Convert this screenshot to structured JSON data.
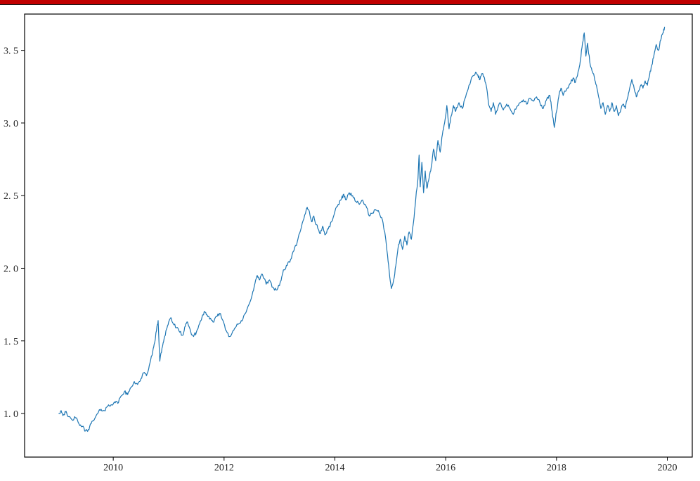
{
  "page": {
    "top_bar_color": "#c00000",
    "top_bar_border_color": "#1a1a1a",
    "background_color": "#ffffff"
  },
  "chart_data": {
    "type": "line",
    "title": "",
    "xlabel": "",
    "ylabel": "",
    "legend": null,
    "grid": false,
    "line_color": "#1f77b4",
    "axis_color": "#000000",
    "tick_label_color": "#222222",
    "xlim": [
      2008.4,
      2020.45
    ],
    "ylim": [
      0.7,
      3.75
    ],
    "x_ticks": [
      {
        "value": 2010,
        "label": "2010"
      },
      {
        "value": 2012,
        "label": "2012"
      },
      {
        "value": 2014,
        "label": "2014"
      },
      {
        "value": 2016,
        "label": "2016"
      },
      {
        "value": 2018,
        "label": "2018"
      },
      {
        "value": 2020,
        "label": "2020"
      }
    ],
    "y_ticks": [
      {
        "value": 1.0,
        "label": "1. 0"
      },
      {
        "value": 1.5,
        "label": "1. 5"
      },
      {
        "value": 2.0,
        "label": "2. 0"
      },
      {
        "value": 2.5,
        "label": "2. 5"
      },
      {
        "value": 3.0,
        "label": "3. 0"
      },
      {
        "value": 3.5,
        "label": "3. 5"
      }
    ],
    "noise_amplitude": 0.012,
    "points": [
      [
        2009.02,
        1.0
      ],
      [
        2009.06,
        1.02
      ],
      [
        2009.1,
        0.99
      ],
      [
        2009.14,
        1.01
      ],
      [
        2009.18,
        0.98
      ],
      [
        2009.25,
        0.96
      ],
      [
        2009.32,
        0.97
      ],
      [
        2009.38,
        0.93
      ],
      [
        2009.44,
        0.91
      ],
      [
        2009.5,
        0.88
      ],
      [
        2009.55,
        0.89
      ],
      [
        2009.6,
        0.93
      ],
      [
        2009.66,
        0.96
      ],
      [
        2009.72,
        1.0
      ],
      [
        2009.78,
        1.03
      ],
      [
        2009.84,
        1.02
      ],
      [
        2009.9,
        1.05
      ],
      [
        2009.96,
        1.06
      ],
      [
        2010.02,
        1.08
      ],
      [
        2010.08,
        1.07
      ],
      [
        2010.14,
        1.12
      ],
      [
        2010.2,
        1.15
      ],
      [
        2010.26,
        1.13
      ],
      [
        2010.32,
        1.18
      ],
      [
        2010.38,
        1.22
      ],
      [
        2010.44,
        1.2
      ],
      [
        2010.5,
        1.24
      ],
      [
        2010.55,
        1.28
      ],
      [
        2010.6,
        1.26
      ],
      [
        2010.65,
        1.33
      ],
      [
        2010.7,
        1.4
      ],
      [
        2010.74,
        1.48
      ],
      [
        2010.78,
        1.57
      ],
      [
        2010.81,
        1.64
      ],
      [
        2010.84,
        1.36
      ],
      [
        2010.88,
        1.45
      ],
      [
        2010.92,
        1.52
      ],
      [
        2010.96,
        1.58
      ],
      [
        2011.0,
        1.63
      ],
      [
        2011.04,
        1.66
      ],
      [
        2011.08,
        1.62
      ],
      [
        2011.14,
        1.59
      ],
      [
        2011.2,
        1.56
      ],
      [
        2011.26,
        1.54
      ],
      [
        2011.3,
        1.6
      ],
      [
        2011.34,
        1.63
      ],
      [
        2011.4,
        1.56
      ],
      [
        2011.45,
        1.53
      ],
      [
        2011.5,
        1.56
      ],
      [
        2011.56,
        1.62
      ],
      [
        2011.6,
        1.66
      ],
      [
        2011.64,
        1.7
      ],
      [
        2011.68,
        1.68
      ],
      [
        2011.74,
        1.65
      ],
      [
        2011.8,
        1.63
      ],
      [
        2011.86,
        1.67
      ],
      [
        2011.92,
        1.69
      ],
      [
        2011.98,
        1.64
      ],
      [
        2012.04,
        1.57
      ],
      [
        2012.1,
        1.53
      ],
      [
        2012.16,
        1.57
      ],
      [
        2012.22,
        1.6
      ],
      [
        2012.28,
        1.62
      ],
      [
        2012.34,
        1.65
      ],
      [
        2012.4,
        1.7
      ],
      [
        2012.46,
        1.76
      ],
      [
        2012.52,
        1.84
      ],
      [
        2012.56,
        1.9
      ],
      [
        2012.6,
        1.95
      ],
      [
        2012.64,
        1.92
      ],
      [
        2012.68,
        1.96
      ],
      [
        2012.72,
        1.93
      ],
      [
        2012.76,
        1.89
      ],
      [
        2012.82,
        1.92
      ],
      [
        2012.88,
        1.87
      ],
      [
        2012.94,
        1.85
      ],
      [
        2013.0,
        1.88
      ],
      [
        2013.04,
        1.94
      ],
      [
        2013.08,
        1.99
      ],
      [
        2013.14,
        2.02
      ],
      [
        2013.2,
        2.06
      ],
      [
        2013.26,
        2.12
      ],
      [
        2013.32,
        2.18
      ],
      [
        2013.38,
        2.26
      ],
      [
        2013.44,
        2.34
      ],
      [
        2013.5,
        2.42
      ],
      [
        2013.54,
        2.39
      ],
      [
        2013.58,
        2.32
      ],
      [
        2013.62,
        2.36
      ],
      [
        2013.66,
        2.3
      ],
      [
        2013.7,
        2.27
      ],
      [
        2013.74,
        2.24
      ],
      [
        2013.78,
        2.29
      ],
      [
        2013.82,
        2.23
      ],
      [
        2013.88,
        2.27
      ],
      [
        2013.94,
        2.32
      ],
      [
        2014.0,
        2.39
      ],
      [
        2014.06,
        2.44
      ],
      [
        2014.12,
        2.48
      ],
      [
        2014.16,
        2.51
      ],
      [
        2014.2,
        2.47
      ],
      [
        2014.26,
        2.52
      ],
      [
        2014.32,
        2.5
      ],
      [
        2014.38,
        2.46
      ],
      [
        2014.44,
        2.44
      ],
      [
        2014.5,
        2.47
      ],
      [
        2014.56,
        2.43
      ],
      [
        2014.62,
        2.36
      ],
      [
        2014.68,
        2.38
      ],
      [
        2014.74,
        2.4
      ],
      [
        2014.8,
        2.38
      ],
      [
        2014.86,
        2.33
      ],
      [
        2014.9,
        2.25
      ],
      [
        2014.94,
        2.12
      ],
      [
        2014.98,
        1.98
      ],
      [
        2015.02,
        1.86
      ],
      [
        2015.06,
        1.92
      ],
      [
        2015.1,
        2.02
      ],
      [
        2015.14,
        2.14
      ],
      [
        2015.18,
        2.2
      ],
      [
        2015.22,
        2.13
      ],
      [
        2015.26,
        2.22
      ],
      [
        2015.3,
        2.16
      ],
      [
        2015.34,
        2.25
      ],
      [
        2015.38,
        2.2
      ],
      [
        2015.42,
        2.32
      ],
      [
        2015.46,
        2.48
      ],
      [
        2015.5,
        2.62
      ],
      [
        2015.52,
        2.78
      ],
      [
        2015.54,
        2.56
      ],
      [
        2015.57,
        2.73
      ],
      [
        2015.6,
        2.52
      ],
      [
        2015.63,
        2.67
      ],
      [
        2015.66,
        2.55
      ],
      [
        2015.7,
        2.62
      ],
      [
        2015.74,
        2.7
      ],
      [
        2015.78,
        2.82
      ],
      [
        2015.82,
        2.74
      ],
      [
        2015.86,
        2.88
      ],
      [
        2015.9,
        2.8
      ],
      [
        2015.94,
        2.92
      ],
      [
        2015.98,
        3.0
      ],
      [
        2016.02,
        3.12
      ],
      [
        2016.06,
        2.96
      ],
      [
        2016.1,
        3.05
      ],
      [
        2016.14,
        3.12
      ],
      [
        2016.18,
        3.08
      ],
      [
        2016.24,
        3.14
      ],
      [
        2016.3,
        3.1
      ],
      [
        2016.36,
        3.18
      ],
      [
        2016.42,
        3.26
      ],
      [
        2016.48,
        3.32
      ],
      [
        2016.54,
        3.35
      ],
      [
        2016.58,
        3.33
      ],
      [
        2016.62,
        3.3
      ],
      [
        2016.66,
        3.34
      ],
      [
        2016.7,
        3.31
      ],
      [
        2016.74,
        3.24
      ],
      [
        2016.78,
        3.12
      ],
      [
        2016.82,
        3.08
      ],
      [
        2016.86,
        3.14
      ],
      [
        2016.9,
        3.06
      ],
      [
        2016.94,
        3.1
      ],
      [
        2016.98,
        3.14
      ],
      [
        2017.04,
        3.09
      ],
      [
        2017.1,
        3.13
      ],
      [
        2017.16,
        3.1
      ],
      [
        2017.22,
        3.06
      ],
      [
        2017.28,
        3.11
      ],
      [
        2017.34,
        3.14
      ],
      [
        2017.4,
        3.16
      ],
      [
        2017.46,
        3.13
      ],
      [
        2017.52,
        3.17
      ],
      [
        2017.58,
        3.15
      ],
      [
        2017.64,
        3.18
      ],
      [
        2017.7,
        3.14
      ],
      [
        2017.76,
        3.1
      ],
      [
        2017.82,
        3.16
      ],
      [
        2017.88,
        3.19
      ],
      [
        2017.92,
        3.08
      ],
      [
        2017.96,
        2.97
      ],
      [
        2018.0,
        3.08
      ],
      [
        2018.04,
        3.18
      ],
      [
        2018.08,
        3.24
      ],
      [
        2018.12,
        3.19
      ],
      [
        2018.18,
        3.23
      ],
      [
        2018.24,
        3.27
      ],
      [
        2018.3,
        3.31
      ],
      [
        2018.34,
        3.28
      ],
      [
        2018.38,
        3.33
      ],
      [
        2018.42,
        3.4
      ],
      [
        2018.46,
        3.52
      ],
      [
        2018.5,
        3.62
      ],
      [
        2018.53,
        3.46
      ],
      [
        2018.56,
        3.55
      ],
      [
        2018.6,
        3.42
      ],
      [
        2018.64,
        3.36
      ],
      [
        2018.68,
        3.32
      ],
      [
        2018.72,
        3.26
      ],
      [
        2018.76,
        3.18
      ],
      [
        2018.8,
        3.1
      ],
      [
        2018.84,
        3.14
      ],
      [
        2018.88,
        3.06
      ],
      [
        2018.92,
        3.12
      ],
      [
        2018.96,
        3.08
      ],
      [
        2019.0,
        3.14
      ],
      [
        2019.04,
        3.08
      ],
      [
        2019.08,
        3.12
      ],
      [
        2019.12,
        3.05
      ],
      [
        2019.16,
        3.09
      ],
      [
        2019.2,
        3.13
      ],
      [
        2019.24,
        3.1
      ],
      [
        2019.28,
        3.17
      ],
      [
        2019.32,
        3.24
      ],
      [
        2019.36,
        3.3
      ],
      [
        2019.4,
        3.24
      ],
      [
        2019.44,
        3.18
      ],
      [
        2019.48,
        3.22
      ],
      [
        2019.52,
        3.26
      ],
      [
        2019.56,
        3.24
      ],
      [
        2019.6,
        3.29
      ],
      [
        2019.64,
        3.26
      ],
      [
        2019.68,
        3.33
      ],
      [
        2019.72,
        3.4
      ],
      [
        2019.76,
        3.47
      ],
      [
        2019.8,
        3.54
      ],
      [
        2019.84,
        3.5
      ],
      [
        2019.88,
        3.57
      ],
      [
        2019.92,
        3.62
      ],
      [
        2019.95,
        3.66
      ]
    ]
  }
}
